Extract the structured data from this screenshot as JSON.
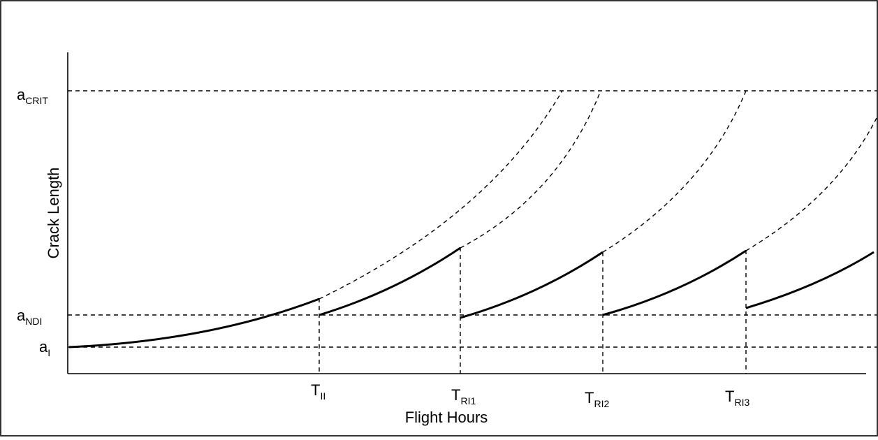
{
  "diagram": {
    "y_axis_title": "Crack Length",
    "x_axis_title": "Flight Hours",
    "y_labels": [
      {
        "id": "a-crit",
        "base": "a",
        "sub": "CRIT"
      },
      {
        "id": "a-ndi",
        "base": "a",
        "sub": "NDI"
      },
      {
        "id": "a-i",
        "base": "a",
        "sub": "I"
      }
    ],
    "x_labels": [
      {
        "id": "t-ii",
        "base": "T",
        "sub": "II"
      },
      {
        "id": "t-ri1",
        "base": "T",
        "sub": "RI1"
      },
      {
        "id": "t-ri2",
        "base": "T",
        "sub": "RI2"
      },
      {
        "id": "t-ri3",
        "base": "T",
        "sub": "RI3"
      }
    ]
  }
}
